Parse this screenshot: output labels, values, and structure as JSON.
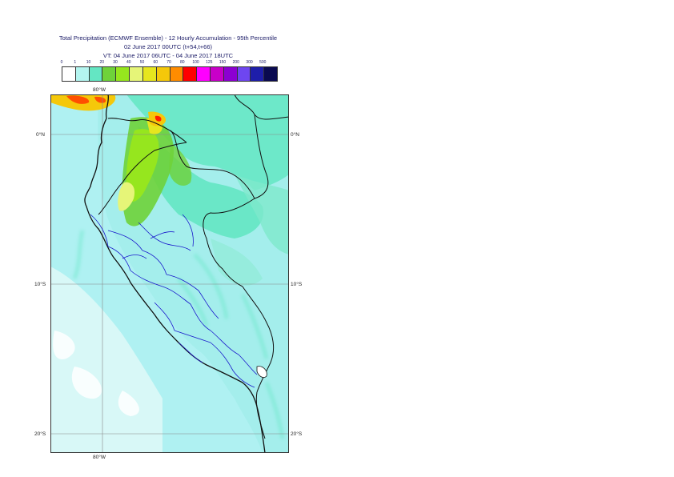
{
  "title": {
    "line1": "Total Precipitation (ECMWF Ensemble) - 12 Hourly Accumulation - 95th Percentile",
    "line2": "02 June 2017 00UTC (t+54,t+66)",
    "line3": "VT: 04 June 2017 06UTC - 04 June 2017 18UTC"
  },
  "legend": {
    "ticks": [
      "0",
      "1",
      "10",
      "20",
      "30",
      "40",
      "50",
      "60",
      "70",
      "80",
      "100",
      "125",
      "150",
      "200",
      "300",
      "500"
    ],
    "colors": [
      "#ffffff",
      "#b4f5f0",
      "#64e6c3",
      "#6fd23a",
      "#96e61e",
      "#e6f578",
      "#e6e61e",
      "#f5c80a",
      "#ff8c00",
      "#ff0000",
      "#ff00ff",
      "#c800c8",
      "#8c00d2",
      "#6e46f0",
      "#1e1eaa",
      "#0a0a50"
    ]
  },
  "axes": {
    "lon_top": "80°W",
    "lon_bottom": "80°W",
    "lat_right": [
      "0°N",
      "10°S",
      "20°S"
    ],
    "lat_left": [
      "0°N",
      "10°S",
      "20°S"
    ]
  },
  "map_colors": {
    "ocean_light": "#aff1f2",
    "ocean_mid": "#8ce8e8",
    "cyan": "#b4f5f0",
    "teal": "#64e6c3",
    "green": "#6fd23a",
    "lime": "#96e61e",
    "yellow": "#e6f578",
    "orange": "#f5c80a",
    "red": "#ff3c00",
    "coast": "#111111",
    "border": "#1a1acc"
  }
}
